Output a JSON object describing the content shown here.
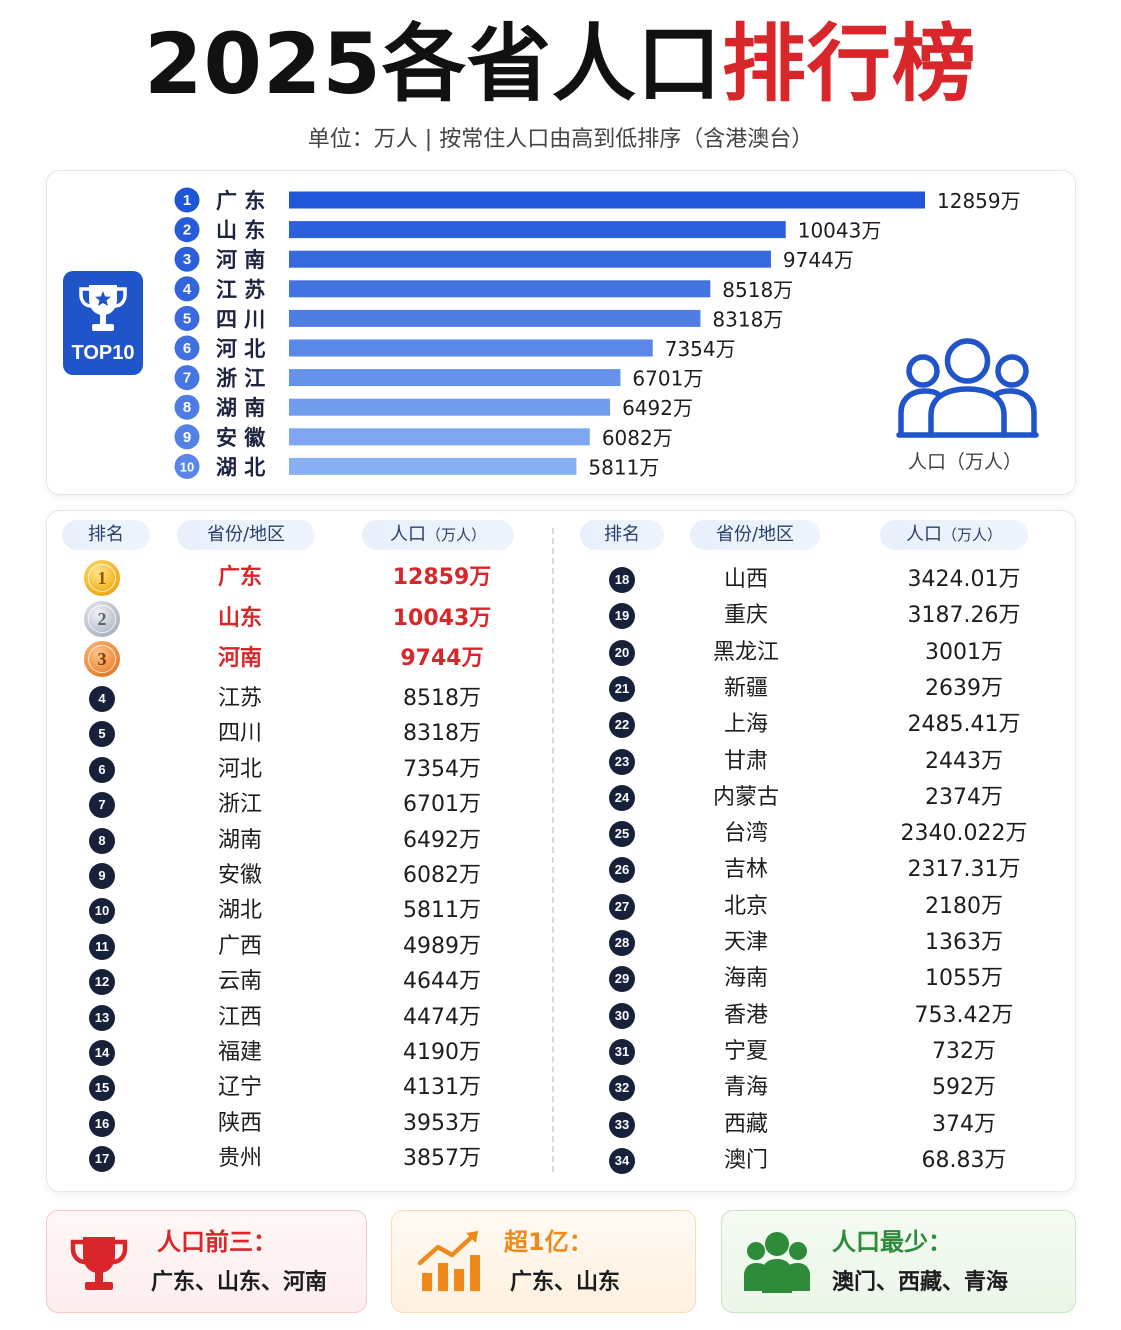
{
  "header": {
    "title_main": "2025各省人口",
    "title_highlight": "排行榜",
    "subtitle": "单位：万人 | 按常住人口由高到低排序（含港澳台）"
  },
  "badge": {
    "label": "TOP10",
    "icon": "trophy-icon"
  },
  "people_label": "人口（万人）",
  "colors": {
    "bar_dark": "#1f55d8",
    "bar_light": "#8ab0f4",
    "highlight": "#d9262a",
    "badge": "#1f55c8"
  },
  "chart_data": {
    "type": "bar",
    "orientation": "horizontal",
    "categories": [
      "广 东",
      "山 东",
      "河 南",
      "江 苏",
      "四 川",
      "河 北",
      "浙 江",
      "湖 南",
      "安 徽",
      "湖 北"
    ],
    "ranks": [
      "1",
      "2",
      "3",
      "4",
      "5",
      "6",
      "7",
      "8",
      "9",
      "10"
    ],
    "values": [
      12859,
      10043,
      9744,
      8518,
      8318,
      7354,
      6701,
      6492,
      6082,
      5811
    ],
    "value_labels": [
      "12859万",
      "10043万",
      "9744万",
      "8518万",
      "8318万",
      "7354万",
      "6701万",
      "6492万",
      "6082万",
      "5811万"
    ],
    "xlim": [
      0,
      12859
    ],
    "grid": false
  },
  "table": {
    "headers": {
      "rank": "排名",
      "region": "省份/地区",
      "pop_main": "人口",
      "pop_unit": "（万人）"
    },
    "rows": [
      {
        "rank": "1",
        "name": "广东",
        "value": "12859万"
      },
      {
        "rank": "2",
        "name": "山东",
        "value": "10043万"
      },
      {
        "rank": "3",
        "name": "河南",
        "value": "9744万"
      },
      {
        "rank": "4",
        "name": "江苏",
        "value": "8518万"
      },
      {
        "rank": "5",
        "name": "四川",
        "value": "8318万"
      },
      {
        "rank": "6",
        "name": "河北",
        "value": "7354万"
      },
      {
        "rank": "7",
        "name": "浙江",
        "value": "6701万"
      },
      {
        "rank": "8",
        "name": "湖南",
        "value": "6492万"
      },
      {
        "rank": "9",
        "name": "安徽",
        "value": "6082万"
      },
      {
        "rank": "10",
        "name": "湖北",
        "value": "5811万"
      },
      {
        "rank": "11",
        "name": "广西",
        "value": "4989万"
      },
      {
        "rank": "12",
        "name": "云南",
        "value": "4644万"
      },
      {
        "rank": "13",
        "name": "江西",
        "value": "4474万"
      },
      {
        "rank": "14",
        "name": "福建",
        "value": "4190万"
      },
      {
        "rank": "15",
        "name": "辽宁",
        "value": "4131万"
      },
      {
        "rank": "16",
        "name": "陕西",
        "value": "3953万"
      },
      {
        "rank": "17",
        "name": "贵州",
        "value": "3857万"
      },
      {
        "rank": "18",
        "name": "山西",
        "value": "3424.01万"
      },
      {
        "rank": "19",
        "name": "重庆",
        "value": "3187.26万"
      },
      {
        "rank": "20",
        "name": "黑龙江",
        "value": "3001万"
      },
      {
        "rank": "21",
        "name": "新疆",
        "value": "2639万"
      },
      {
        "rank": "22",
        "name": "上海",
        "value": "2485.41万"
      },
      {
        "rank": "23",
        "name": "甘肃",
        "value": "2443万"
      },
      {
        "rank": "24",
        "name": "内蒙古",
        "value": "2374万"
      },
      {
        "rank": "25",
        "name": "台湾",
        "value": "2340.022万"
      },
      {
        "rank": "26",
        "name": "吉林",
        "value": "2317.31万"
      },
      {
        "rank": "27",
        "name": "北京",
        "value": "2180万"
      },
      {
        "rank": "28",
        "name": "天津",
        "value": "1363万"
      },
      {
        "rank": "29",
        "name": "海南",
        "value": "1055万"
      },
      {
        "rank": "30",
        "name": "香港",
        "value": "753.42万"
      },
      {
        "rank": "31",
        "name": "宁夏",
        "value": "732万"
      },
      {
        "rank": "32",
        "name": "青海",
        "value": "592万"
      },
      {
        "rank": "33",
        "name": "西藏",
        "value": "374万"
      },
      {
        "rank": "34",
        "name": "澳门",
        "value": "68.83万"
      }
    ]
  },
  "cards": {
    "top3": {
      "title": "人口前三：",
      "body": "广东、山东、河南",
      "icon": "trophy-icon",
      "color": "#d9262a"
    },
    "over100m": {
      "title": "超1亿：",
      "body": "广东、山东",
      "icon": "growth-chart-icon",
      "color": "#ee8a1c"
    },
    "least": {
      "title": "人口最少：",
      "body": "澳门、西藏、青海",
      "icon": "group-icon",
      "color": "#2e8b3a"
    }
  }
}
